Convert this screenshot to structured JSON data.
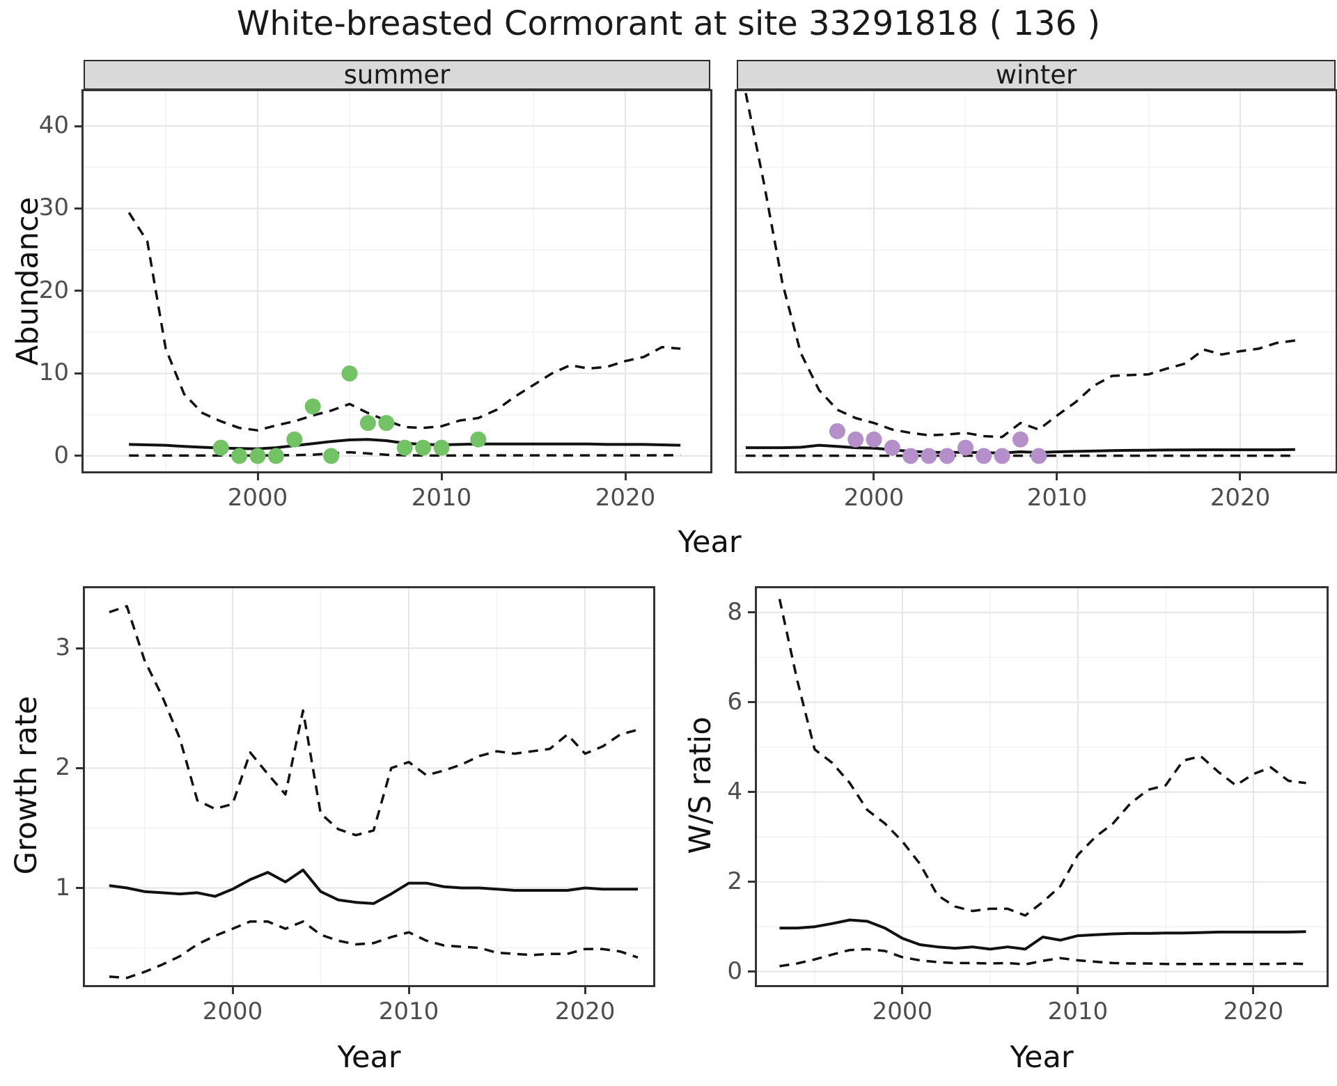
{
  "title": "White-breasted Cormorant at site 33291818 ( 136 )",
  "axis_labels": {
    "x": "Year",
    "abundance": "Abundance",
    "growth": "Growth rate",
    "ws": "W/S ratio"
  },
  "facets": {
    "summer": "summer",
    "winter": "winter"
  },
  "colors": {
    "summer_points": "#74c266",
    "winter_points": "#b48fc9",
    "line": "#111111",
    "grid_major": "#e7e7e7",
    "grid_minor": "#f3f3f3",
    "panel_border": "#333333",
    "strip_bg": "#d9d9d9",
    "tick_text": "#4d4d4d"
  },
  "years": [
    1993,
    1994,
    1995,
    1996,
    1997,
    1998,
    1999,
    2000,
    2001,
    2002,
    2003,
    2004,
    2005,
    2006,
    2007,
    2008,
    2009,
    2010,
    2011,
    2012,
    2013,
    2014,
    2015,
    2016,
    2017,
    2018,
    2019,
    2020,
    2021,
    2022,
    2023
  ],
  "chart_data": [
    {
      "id": "summer",
      "type": "line",
      "facet": "summer",
      "title": "Abundance - summer facet",
      "xlim": [
        1990.53,
        2024.62
      ],
      "ylim": [
        -1.86,
        44.22
      ],
      "x_ticks": [
        2000,
        2010,
        2020
      ],
      "x_tick_labels": [
        "2000",
        "2010",
        "2020"
      ],
      "x_minor": [
        1995,
        2005,
        2015
      ],
      "y_ticks": [
        0,
        10,
        20,
        30,
        40
      ],
      "y_tick_labels": [
        "0",
        "10",
        "20",
        "30",
        "40"
      ],
      "y_minor": [
        5,
        15,
        25,
        35
      ],
      "show_y_labels": true,
      "series": [
        {
          "name": "upper_ci",
          "style": "dashed",
          "values": [
            29.5,
            26,
            13,
            7.5,
            5.2,
            4.2,
            3.4,
            3.1,
            3.7,
            4.2,
            4.9,
            5.5,
            6.3,
            5.2,
            4.3,
            3.5,
            3.4,
            3.6,
            4.3,
            4.6,
            5.6,
            7.2,
            8.6,
            10.0,
            11.0,
            10.6,
            10.8,
            11.5,
            12.0,
            13.2,
            13.0
          ]
        },
        {
          "name": "median",
          "style": "solid",
          "values": [
            1.4,
            1.35,
            1.3,
            1.15,
            1.05,
            0.97,
            0.9,
            0.87,
            1.0,
            1.25,
            1.5,
            1.75,
            1.95,
            2.0,
            1.85,
            1.55,
            1.4,
            1.35,
            1.4,
            1.45,
            1.45,
            1.45,
            1.45,
            1.45,
            1.45,
            1.45,
            1.4,
            1.4,
            1.4,
            1.35,
            1.3
          ]
        },
        {
          "name": "lower_ci",
          "style": "dashed",
          "values": [
            0.05,
            0.05,
            0.05,
            0.05,
            0.05,
            0.05,
            0.05,
            0.05,
            0.07,
            0.1,
            0.15,
            0.3,
            0.45,
            0.3,
            0.15,
            0.08,
            0.06,
            0.05,
            0.06,
            0.07,
            0.07,
            0.07,
            0.07,
            0.07,
            0.07,
            0.07,
            0.07,
            0.07,
            0.07,
            0.08,
            0.1
          ]
        }
      ],
      "points": {
        "color": "#74c266",
        "data": [
          [
            1998,
            1
          ],
          [
            1999,
            0
          ],
          [
            2000,
            0
          ],
          [
            2001,
            0
          ],
          [
            2002,
            2
          ],
          [
            2003,
            6
          ],
          [
            2004,
            0
          ],
          [
            2005,
            10
          ],
          [
            2006,
            4
          ],
          [
            2007,
            4
          ],
          [
            2008,
            1
          ],
          [
            2009,
            1
          ],
          [
            2010,
            1
          ],
          [
            2012,
            2
          ]
        ]
      }
    },
    {
      "id": "winter",
      "type": "line",
      "facet": "winter",
      "title": "Abundance - winter facet",
      "xlim": [
        1992.51,
        2025.21
      ],
      "ylim": [
        -1.86,
        44.22
      ],
      "x_ticks": [
        2000,
        2010,
        2020
      ],
      "x_tick_labels": [
        "2000",
        "2010",
        "2020"
      ],
      "x_minor": [
        1995,
        2005,
        2015,
        2025
      ],
      "y_ticks": [
        0,
        10,
        20,
        30,
        40
      ],
      "y_tick_labels": [
        "0",
        "10",
        "20",
        "30",
        "40"
      ],
      "y_minor": [
        5,
        15,
        25,
        35
      ],
      "show_y_labels": false,
      "series": [
        {
          "name": "upper_ci",
          "style": "dashed",
          "values": [
            44,
            33,
            21,
            12.5,
            8.0,
            5.6,
            4.6,
            4.0,
            3.2,
            2.8,
            2.5,
            2.6,
            2.8,
            2.4,
            2.3,
            4.0,
            3.2,
            4.9,
            6.5,
            8.5,
            9.7,
            9.8,
            9.9,
            10.6,
            11.2,
            12.9,
            12.3,
            12.7,
            13.0,
            13.7,
            14.0
          ]
        },
        {
          "name": "median",
          "style": "solid",
          "values": [
            1.0,
            1.0,
            1.0,
            1.05,
            1.3,
            1.15,
            1.0,
            0.95,
            0.75,
            0.55,
            0.45,
            0.42,
            0.45,
            0.4,
            0.35,
            0.5,
            0.42,
            0.5,
            0.55,
            0.6,
            0.65,
            0.68,
            0.7,
            0.72,
            0.73,
            0.75,
            0.75,
            0.75,
            0.75,
            0.75,
            0.78
          ]
        },
        {
          "name": "lower_ci",
          "style": "dashed",
          "values": [
            0.03,
            0.03,
            0.03,
            0.03,
            0.03,
            0.03,
            0.03,
            0.03,
            0.03,
            0.03,
            0.03,
            0.03,
            0.03,
            0.03,
            0.03,
            0.03,
            0.03,
            0.03,
            0.03,
            0.03,
            0.03,
            0.03,
            0.03,
            0.03,
            0.03,
            0.03,
            0.03,
            0.03,
            0.03,
            0.03,
            0.03
          ]
        }
      ],
      "points": {
        "color": "#b48fc9",
        "data": [
          [
            1998,
            3
          ],
          [
            1999,
            2
          ],
          [
            2000,
            2
          ],
          [
            2001,
            1
          ],
          [
            2002,
            0
          ],
          [
            2003,
            0
          ],
          [
            2004,
            0
          ],
          [
            2005,
            1
          ],
          [
            2006,
            0
          ],
          [
            2007,
            0
          ],
          [
            2008,
            2
          ],
          [
            2009,
            0
          ]
        ]
      }
    },
    {
      "id": "growth",
      "type": "line",
      "facet": null,
      "title": "Growth rate",
      "xlim": [
        1991.62,
        2023.87
      ],
      "ylim": [
        0.19,
        3.5
      ],
      "x_ticks": [
        2000,
        2010,
        2020
      ],
      "x_tick_labels": [
        "2000",
        "2010",
        "2020"
      ],
      "x_minor": [
        1995,
        2005,
        2015
      ],
      "y_ticks": [
        1,
        2,
        3
      ],
      "y_tick_labels": [
        "1",
        "2",
        "3"
      ],
      "y_minor": [
        0.5,
        1.5,
        2.5,
        3.5
      ],
      "show_y_labels": true,
      "series": [
        {
          "name": "upper_ci",
          "style": "dashed",
          "values": [
            3.3,
            3.35,
            2.9,
            2.6,
            2.25,
            1.73,
            1.66,
            1.7,
            2.13,
            1.95,
            1.78,
            2.48,
            1.62,
            1.49,
            1.44,
            1.48,
            2.0,
            2.05,
            1.94,
            1.98,
            2.03,
            2.1,
            2.14,
            2.12,
            2.14,
            2.16,
            2.28,
            2.12,
            2.18,
            2.28,
            2.32
          ]
        },
        {
          "name": "median",
          "style": "solid",
          "values": [
            1.02,
            1.0,
            0.97,
            0.96,
            0.95,
            0.96,
            0.93,
            0.99,
            1.07,
            1.13,
            1.05,
            1.15,
            0.97,
            0.9,
            0.88,
            0.87,
            0.95,
            1.04,
            1.04,
            1.01,
            1.0,
            1.0,
            0.99,
            0.98,
            0.98,
            0.98,
            0.98,
            1.0,
            0.99,
            0.99,
            0.99
          ]
        },
        {
          "name": "lower_ci",
          "style": "dashed",
          "values": [
            0.26,
            0.25,
            0.3,
            0.36,
            0.43,
            0.53,
            0.6,
            0.66,
            0.72,
            0.72,
            0.66,
            0.72,
            0.61,
            0.56,
            0.53,
            0.54,
            0.59,
            0.63,
            0.56,
            0.52,
            0.51,
            0.5,
            0.46,
            0.45,
            0.44,
            0.45,
            0.45,
            0.49,
            0.49,
            0.47,
            0.42
          ]
        }
      ],
      "points": null
    },
    {
      "id": "ws",
      "type": "line",
      "facet": null,
      "title": "W/S ratio",
      "xlim": [
        1991.71,
        2024.17
      ],
      "ylim": [
        -0.3,
        8.54
      ],
      "x_ticks": [
        2000,
        2010,
        2020
      ],
      "x_tick_labels": [
        "2000",
        "2010",
        "2020"
      ],
      "x_minor": [
        1995,
        2005,
        2015
      ],
      "y_ticks": [
        0,
        2,
        4,
        6,
        8
      ],
      "y_tick_labels": [
        "0",
        "2",
        "4",
        "6",
        "8"
      ],
      "y_minor": [
        1,
        3,
        5,
        7
      ],
      "show_y_labels": true,
      "series": [
        {
          "name": "upper_ci",
          "style": "dashed",
          "values": [
            8.3,
            6.5,
            4.95,
            4.65,
            4.2,
            3.6,
            3.3,
            2.9,
            2.4,
            1.7,
            1.45,
            1.35,
            1.4,
            1.4,
            1.25,
            1.55,
            1.9,
            2.6,
            3.0,
            3.3,
            3.75,
            4.05,
            4.15,
            4.7,
            4.8,
            4.45,
            4.15,
            4.4,
            4.55,
            4.25,
            4.2
          ]
        },
        {
          "name": "median",
          "style": "solid",
          "values": [
            0.97,
            0.97,
            1.0,
            1.07,
            1.15,
            1.12,
            0.97,
            0.74,
            0.6,
            0.55,
            0.52,
            0.55,
            0.5,
            0.55,
            0.5,
            0.77,
            0.7,
            0.8,
            0.82,
            0.84,
            0.85,
            0.85,
            0.86,
            0.86,
            0.87,
            0.88,
            0.88,
            0.88,
            0.88,
            0.88,
            0.89
          ]
        },
        {
          "name": "lower_ci",
          "style": "dashed",
          "values": [
            0.12,
            0.18,
            0.27,
            0.38,
            0.48,
            0.5,
            0.46,
            0.32,
            0.25,
            0.21,
            0.19,
            0.19,
            0.18,
            0.19,
            0.16,
            0.24,
            0.3,
            0.25,
            0.22,
            0.19,
            0.18,
            0.18,
            0.17,
            0.17,
            0.17,
            0.17,
            0.17,
            0.17,
            0.17,
            0.18,
            0.17
          ]
        }
      ],
      "points": null
    }
  ]
}
